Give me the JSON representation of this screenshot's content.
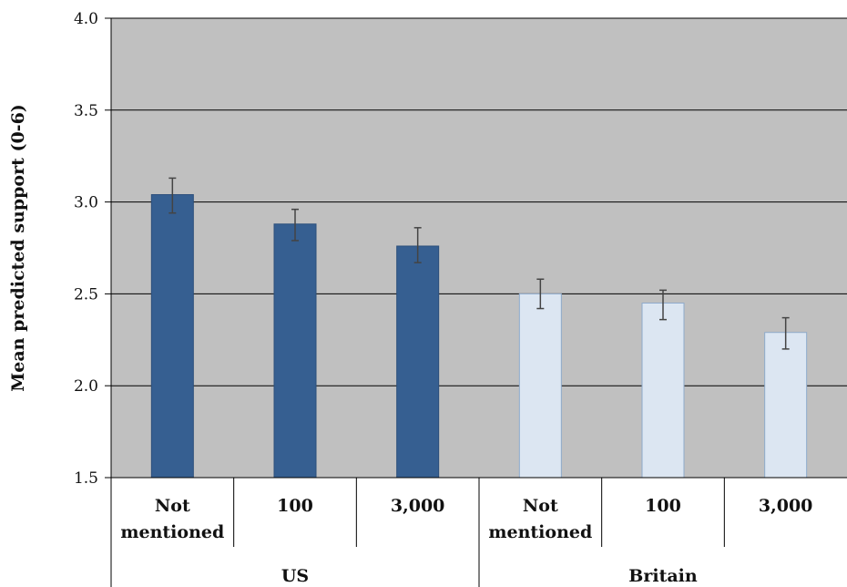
{
  "chart_data": {
    "type": "bar",
    "ylabel": "Mean predicted support (0-6)",
    "xlabel": "",
    "ylim": [
      1.5,
      4.0
    ],
    "yticks": [
      "1.5",
      "2.0",
      "2.5",
      "3.0",
      "3.5",
      "4.0"
    ],
    "grid": true,
    "plot_background": "#c0c0c0",
    "groups": [
      {
        "name": "US",
        "color": "#365f91",
        "categories": [
          [
            "Not",
            "mentioned"
          ],
          [
            "100"
          ],
          [
            "3,000"
          ]
        ],
        "values": [
          3.04,
          2.88,
          2.76
        ],
        "err_low": [
          2.94,
          2.79,
          2.67
        ],
        "err_high": [
          3.13,
          2.96,
          2.86
        ]
      },
      {
        "name": "Britain",
        "color": "#dce6f2",
        "categories": [
          [
            "Not",
            "mentioned"
          ],
          [
            "100"
          ],
          [
            "3,000"
          ]
        ],
        "values": [
          2.5,
          2.45,
          2.29
        ],
        "err_low": [
          2.42,
          2.36,
          2.2
        ],
        "err_high": [
          2.58,
          2.52,
          2.37
        ]
      }
    ]
  }
}
